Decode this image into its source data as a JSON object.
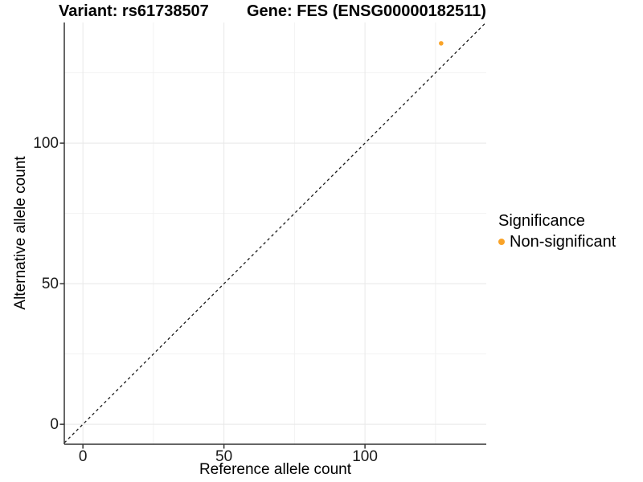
{
  "chart_data": {
    "type": "scatter",
    "title_left": "Variant: rs61738507",
    "title_right": "Gene: FES (ENSG00000182511)",
    "xlabel": "Reference allele count",
    "ylabel": "Alternative allele count",
    "xlim": [
      -6.6,
      143.0
    ],
    "ylim": [
      -7.1,
      142.9
    ],
    "x_major_ticks": [
      0,
      50,
      100
    ],
    "y_major_ticks": [
      0,
      50,
      100
    ],
    "x_minor_gridlines": [
      25,
      75,
      125
    ],
    "y_minor_gridlines": [
      25,
      75,
      125
    ],
    "grid": "major and minor gridlines, light gray on white panel",
    "series": [
      {
        "name": "Non-significant",
        "color": "#F9A328",
        "points": [
          {
            "x": 127,
            "y": 135.5
          }
        ]
      }
    ],
    "reference_line": {
      "type": "identity (y = x)",
      "style": "dashed",
      "color": "#1A1A1A"
    },
    "legend": {
      "title": "Significance",
      "position": "right",
      "entries": [
        {
          "label": "Non-significant",
          "color": "#F9A328"
        }
      ]
    }
  },
  "style_colors": {
    "point_orange": "#F9A328",
    "grid_major": "#E8E8E8",
    "grid_minor": "#F2F2F2",
    "axis_line": "#333333",
    "dashed_line": "#1A1A1A",
    "text": "#000000",
    "background": "#FFFFFF"
  }
}
